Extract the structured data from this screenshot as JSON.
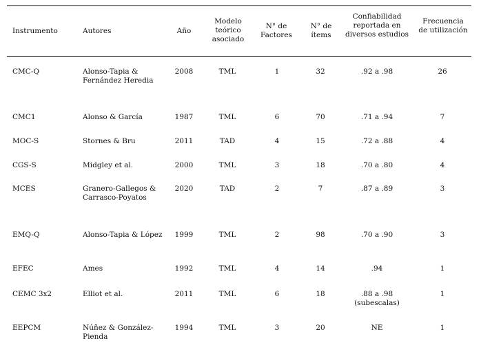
{
  "header": {
    "instrumento": "Instrumento",
    "autores": "Autores",
    "anio": "Año",
    "modelo": "Modelo teórico asociado",
    "factores": "N° de Factores",
    "items": "N° de ítems",
    "confiabilidad": "Confiabilidad reportada en diversos estudios",
    "frecuencia": "Frecuencia de utilización"
  },
  "rows": [
    {
      "instrumento": "CMC-Q",
      "autores": "Alonso-Tapia & Fernández Heredia",
      "anio": "2008",
      "modelo": "TML",
      "factores": "1",
      "items": "32",
      "confiabilidad": ".92 a .98",
      "frecuencia": "26"
    },
    {
      "instrumento": "CMC1",
      "autores": "Alonso & García",
      "anio": "1987",
      "modelo": "TML",
      "factores": "6",
      "items": "70",
      "confiabilidad": ".71 a .94",
      "frecuencia": "7"
    },
    {
      "instrumento": "MOC-S",
      "autores": "Stornes & Bru",
      "anio": "2011",
      "modelo": "TAD",
      "factores": "4",
      "items": "15",
      "confiabilidad": ".72 a .88",
      "frecuencia": "4"
    },
    {
      "instrumento": "CGS-S",
      "autores": "Midgley et al.",
      "anio": "2000",
      "modelo": "TML",
      "factores": "3",
      "items": "18",
      "confiabilidad": ".70 a .80",
      "frecuencia": "4"
    },
    {
      "instrumento": "MCES",
      "autores": "Granero-Gallegos & Carrasco-Poyatos",
      "anio": "2020",
      "modelo": "TAD",
      "factores": "2",
      "items": "7",
      "confiabilidad": ".87 a .89",
      "frecuencia": "3"
    },
    {
      "instrumento": "EMQ-Q",
      "autores": "Alonso-Tapia & López",
      "anio": "1999",
      "modelo": "TML",
      "factores": "2",
      "items": "98",
      "confiabilidad": ".70 a .90",
      "frecuencia": "3"
    },
    {
      "instrumento": "EFEC",
      "autores": "Ames",
      "anio": "1992",
      "modelo": "TML",
      "factores": "4",
      "items": "14",
      "confiabilidad": ".94",
      "frecuencia": "1"
    },
    {
      "instrumento": "CEMC 3x2",
      "autores": "Elliot et al.",
      "anio": "2011",
      "modelo": "TML",
      "factores": "6",
      "items": "18",
      "confiabilidad": ".88 a .98 (subescalas)",
      "frecuencia": "1"
    },
    {
      "instrumento": "EEPCM",
      "autores": "Núñez & González-Pienda",
      "anio": "1994",
      "modelo": "TML",
      "factores": "3",
      "items": "20",
      "confiabilidad": "NE",
      "frecuencia": "1"
    }
  ]
}
